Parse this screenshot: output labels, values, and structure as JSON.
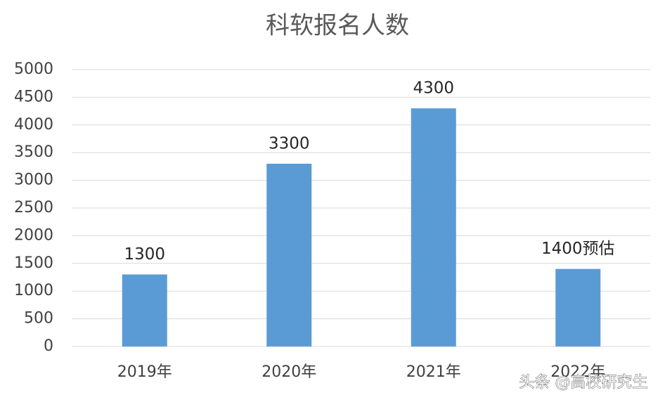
{
  "chart_data": {
    "type": "bar",
    "title": "科软报名人数",
    "categories": [
      "2019年",
      "2020年",
      "2021年",
      "2022年"
    ],
    "values": [
      1300,
      3300,
      4300,
      1400
    ],
    "value_labels": [
      "1300",
      "3300",
      "4300",
      "1400预估"
    ],
    "color": "#5b9bd5",
    "ylim": [
      0,
      5000
    ],
    "yticks": [
      0,
      500,
      1000,
      1500,
      2000,
      2500,
      3000,
      3500,
      4000,
      4500,
      5000
    ],
    "grid": true,
    "watermark": "头条 @高校研究生"
  }
}
